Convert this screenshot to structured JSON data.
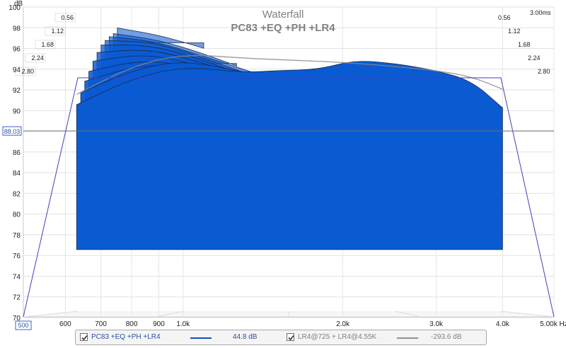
{
  "chart_data": {
    "type": "area",
    "title": "Waterfall",
    "subtitle": "PC83 +EQ +PH +LR4",
    "ylabel": "dB",
    "xunit": "Hz",
    "ylim": [
      70,
      100
    ],
    "xlim": [
      500,
      5000
    ],
    "x_scale": "log",
    "y_ticks": [
      70,
      72,
      74,
      76,
      78,
      80,
      82,
      84,
      86,
      88,
      90,
      92,
      94,
      96,
      98,
      100
    ],
    "x_ticks": [
      "600",
      "700",
      "800",
      "900",
      "1.0k",
      "2.0k",
      "3.0k",
      "4.0k",
      "5.00k Hz"
    ],
    "x_tick_values": [
      600,
      700,
      800,
      900,
      1000,
      2000,
      3000,
      4000,
      5000
    ],
    "x_start_label": "500",
    "time_ticks": [
      "0.56",
      "1.12",
      "1.68",
      "2.24",
      "2.80"
    ],
    "time_end_label": "3.00ms",
    "cursor_value": "88.03",
    "cursor_db": 88.03,
    "grid": true,
    "legend_placement": "bottom",
    "series": [
      {
        "name": "PC83 +EQ +PH +LR4",
        "level": "44.8 dB",
        "color": "#0a5ad2",
        "slices": [
          {
            "t": 0.0,
            "x": [
              630,
              800,
              1000,
              1300,
              1500,
              1800,
              2100,
              2500,
              3000,
              3500,
              4000
            ],
            "y": [
              90.5,
              93.0,
              94.2,
              93.6,
              93.8,
              93.9,
              94.8,
              94.5,
              93.8,
              92.8,
              90.2
            ]
          },
          {
            "t": 0.28,
            "x": [
              630,
              800,
              1000,
              1300,
              1500,
              1800,
              2100,
              2500,
              3000,
              3500,
              4000
            ],
            "y": [
              90.0,
              92.3,
              93.2,
              92.0,
              91.6,
              92.2,
              92.0,
              91.4,
              90.6,
              89.8,
              88.8
            ]
          },
          {
            "t": 0.56,
            "x": [
              630,
              800,
              1000,
              1300,
              1500,
              1800,
              2100,
              2500,
              3000,
              3500,
              4000
            ],
            "y": [
              89.4,
              91.0,
              91.0,
              89.6,
              88.6,
              88.2,
              87.8,
              87.2,
              86.8,
              86.4,
              86.0
            ]
          },
          {
            "t": 0.84,
            "x": [
              630,
              800,
              1000,
              1300,
              1500,
              1800,
              2100,
              2500,
              3000,
              3500,
              4000
            ],
            "y": [
              88.6,
              89.8,
              89.2,
              87.6,
              86.6,
              85.6,
              84.8,
              84.2,
              83.6,
              83.0,
              82.6
            ]
          },
          {
            "t": 1.12,
            "x": [
              630,
              800,
              1000,
              1300,
              1500,
              1800,
              2100,
              2500,
              3000,
              3500,
              4000
            ],
            "y": [
              87.8,
              88.6,
              87.6,
              85.8,
              84.6,
              83.4,
              82.4,
              81.4,
              80.8,
              80.2,
              79.8
            ]
          },
          {
            "t": 1.4,
            "x": [
              630,
              800,
              1000,
              1300,
              1500,
              1800,
              2100,
              2500,
              3000,
              3500,
              4000
            ],
            "y": [
              86.8,
              87.2,
              86.0,
              84.0,
              82.6,
              81.2,
              80.2,
              79.4,
              78.8,
              78.2,
              77.6
            ]
          },
          {
            "t": 1.68,
            "x": [
              630,
              800,
              1000,
              1300,
              1500,
              1800,
              2100,
              2500,
              3000
            ],
            "y": [
              85.6,
              85.6,
              84.2,
              82.0,
              80.6,
              79.4,
              79.8,
              78.2,
              77.2
            ]
          },
          {
            "t": 1.96,
            "x": [
              630,
              800,
              1000,
              1300,
              1500,
              1800,
              2100
            ],
            "y": [
              84.0,
              83.8,
              82.2,
              80.0,
              78.8,
              78.6,
              77.2
            ]
          },
          {
            "t": 2.24,
            "x": [
              630,
              800,
              1000,
              1300,
              1500
            ],
            "y": [
              82.2,
              81.6,
              80.0,
              78.0,
              76.8
            ]
          },
          {
            "t": 2.52,
            "x": [
              630,
              800,
              1000,
              1200
            ],
            "y": [
              80.2,
              79.4,
              77.8,
              76.2
            ]
          },
          {
            "t": 2.8,
            "x": [
              630,
              800,
              1000
            ],
            "y": [
              78.4,
              77.4,
              75.8
            ]
          }
        ]
      },
      {
        "name": "LR4@725 + LR4@4.55K",
        "level": "-293.6 dB",
        "color": "#808080",
        "slices": [
          {
            "t": 0.0,
            "x": [
              630,
              800,
              1000,
              1300,
              1600,
              2000,
              2500,
              3000,
              3500,
              4000
            ],
            "y": [
              91.5,
              94.2,
              95.4,
              95.0,
              94.8,
              94.6,
              94.2,
              93.8,
              93.2,
              92.0
            ]
          }
        ]
      }
    ]
  },
  "legend": [
    {
      "label": "PC83 +EQ +PH +LR4",
      "value": "44.8 dB",
      "color": "#1050c0",
      "checked": true
    },
    {
      "label": "LR4@725 + LR4@4.55K",
      "value": "-293.6 dB",
      "color": "#909090",
      "checked": true
    }
  ]
}
